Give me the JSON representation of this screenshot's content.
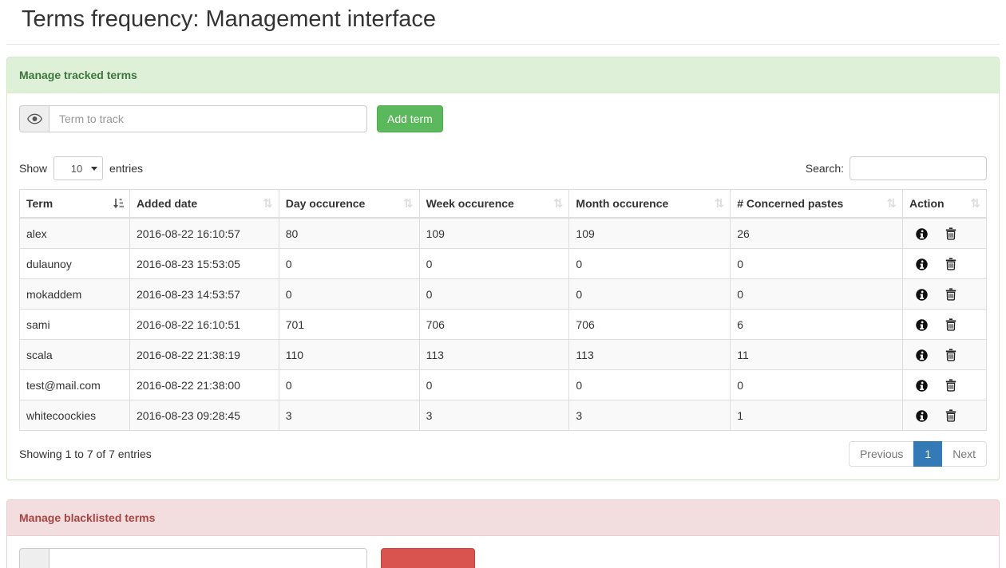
{
  "page": {
    "title": "Terms frequency: Management interface"
  },
  "tracked_panel": {
    "title": "Manage tracked terms",
    "input_placeholder": "Term to track",
    "input_value": "",
    "add_button_label": "Add term",
    "addon_icon": "eye-icon"
  },
  "table_controls": {
    "show_label": "Show",
    "page_length": "10",
    "entries_label": "entries",
    "search_label": "Search:",
    "search_value": ""
  },
  "table": {
    "columns": [
      {
        "label": "Term",
        "sort_state": "ascending",
        "sort_icon": "sort-ascending-icon"
      },
      {
        "label": "Added date",
        "sort_state": "none",
        "sort_icon": "sort-both-icon"
      },
      {
        "label": "Day occurence",
        "sort_state": "none",
        "sort_icon": "sort-both-icon"
      },
      {
        "label": "Week occurence",
        "sort_state": "none",
        "sort_icon": "sort-both-icon"
      },
      {
        "label": "Month occurence",
        "sort_state": "none",
        "sort_icon": "sort-both-icon"
      },
      {
        "label": "# Concerned pastes",
        "sort_state": "none",
        "sort_icon": "sort-both-icon"
      },
      {
        "label": "Action",
        "sort_state": "none",
        "sort_icon": "sort-both-icon"
      }
    ],
    "rows": [
      {
        "term": "alex",
        "added_date": "2016-08-22 16:10:57",
        "day": "80",
        "week": "109",
        "month": "109",
        "pastes": "26",
        "actions": [
          "info-icon",
          "trash-icon"
        ]
      },
      {
        "term": "dulaunoy",
        "added_date": "2016-08-23 15:53:05",
        "day": "0",
        "week": "0",
        "month": "0",
        "pastes": "0",
        "actions": [
          "info-icon",
          "trash-icon"
        ]
      },
      {
        "term": "mokaddem",
        "added_date": "2016-08-23 14:53:57",
        "day": "0",
        "week": "0",
        "month": "0",
        "pastes": "0",
        "actions": [
          "info-icon",
          "trash-icon"
        ]
      },
      {
        "term": "sami",
        "added_date": "2016-08-22 16:10:51",
        "day": "701",
        "week": "706",
        "month": "706",
        "pastes": "6",
        "actions": [
          "info-icon",
          "trash-icon"
        ]
      },
      {
        "term": "scala",
        "added_date": "2016-08-22 21:38:19",
        "day": "110",
        "week": "113",
        "month": "113",
        "pastes": "11",
        "actions": [
          "info-icon",
          "trash-icon"
        ]
      },
      {
        "term": "test@mail.com",
        "added_date": "2016-08-22 21:38:00",
        "day": "0",
        "week": "0",
        "month": "0",
        "pastes": "0",
        "actions": [
          "info-icon",
          "trash-icon"
        ]
      },
      {
        "term": "whitecoockies",
        "added_date": "2016-08-23 09:28:45",
        "day": "3",
        "week": "3",
        "month": "3",
        "pastes": "1",
        "actions": [
          "info-icon",
          "trash-icon"
        ]
      }
    ]
  },
  "table_footer": {
    "info": "Showing 1 to 7 of 7 entries",
    "pagination": {
      "previous": "Previous",
      "current": "1",
      "next": "Next"
    }
  },
  "blacklist_panel": {
    "title": "Manage blacklisted terms",
    "input_value": ""
  },
  "colors": {
    "panel_success_bg": "#dff0d8",
    "panel_success_text": "#3c763d",
    "panel_success_border": "#d6e9c6",
    "panel_danger_bg": "#f2dede",
    "panel_danger_text": "#a94442",
    "panel_danger_border": "#ebccd1",
    "add_button_green": "#5cb85c",
    "blacklist_button_red": "#d9534f",
    "active_page_blue": "#337ab7",
    "table_border": "#dddddd",
    "striped_row": "#f9f9f9"
  }
}
